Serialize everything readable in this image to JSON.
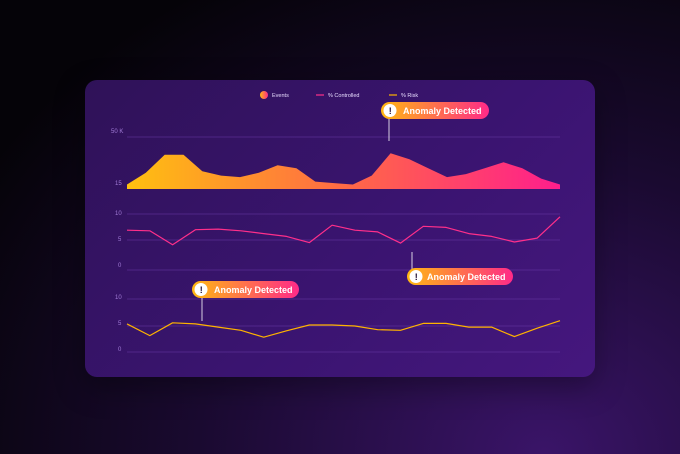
{
  "legend": {
    "events": "Events",
    "controlled": "% Controlled",
    "risk": "% Risk"
  },
  "annotations": {
    "top": "Anomaly Detected",
    "middle": "Anomaly Detected",
    "bottom": "Anomaly Detected"
  },
  "colors": {
    "events_start": "#ffb812",
    "events_end": "#ff1e8c",
    "controlled": "#ff2f8a",
    "risk": "#ffb300",
    "grid": "#6a3aa8"
  },
  "chart_data": [
    {
      "type": "area",
      "series": [
        {
          "name": "Events",
          "values": [
            18,
            26,
            38,
            38,
            27,
            24,
            23,
            26,
            31,
            29,
            20,
            19,
            18,
            24,
            39,
            35,
            29,
            23,
            25,
            29,
            33,
            29,
            22,
            18
          ]
        }
      ],
      "ytick_labels": [
        "50 K",
        "15"
      ],
      "ylim": [
        15,
        50
      ]
    },
    {
      "type": "line",
      "series": [
        {
          "name": "% Controlled",
          "values": [
            7.1,
            7,
            4.5,
            7.2,
            7.3,
            7,
            6.5,
            6,
            4.9,
            8,
            7.1,
            6.8,
            4.8,
            7.8,
            7.6,
            6.5,
            6,
            5,
            5.7,
            9.5
          ]
        }
      ],
      "ytick_labels": [
        "10",
        "5",
        "0"
      ],
      "ylim": [
        0,
        10
      ]
    },
    {
      "type": "line",
      "series": [
        {
          "name": "% Risk",
          "values": [
            5.3,
            3.1,
            5.5,
            5.3,
            4.7,
            4.1,
            2.8,
            4,
            5.1,
            5.1,
            4.9,
            4.2,
            4.1,
            5.4,
            5.4,
            4.7,
            4.7,
            2.9,
            4.5,
            5.9
          ]
        }
      ],
      "ytick_labels": [
        "10",
        "5",
        "0"
      ],
      "ylim": [
        0,
        10
      ]
    }
  ]
}
